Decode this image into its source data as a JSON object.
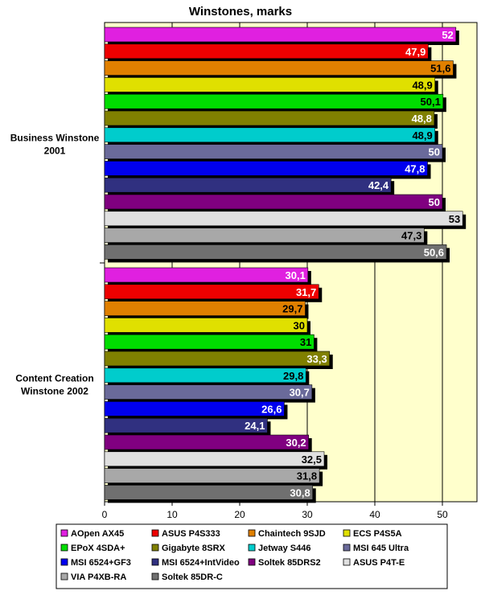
{
  "chart_data": {
    "type": "bar",
    "orientation": "horizontal",
    "title": "Winstones, marks",
    "xlabel": "",
    "ylabel": "",
    "xlim": [
      0,
      55
    ],
    "xticks": [
      0,
      10,
      20,
      30,
      40,
      50
    ],
    "grid": true,
    "legend_position": "bottom",
    "categories": [
      {
        "label": [
          "Business Winstone",
          "2001"
        ]
      },
      {
        "label": [
          "Content Creation",
          "Winstone 2002"
        ]
      }
    ],
    "series": [
      {
        "name": "AOpen AX45",
        "color": "#e020e0",
        "text_color": "#ffffff",
        "values": [
          52,
          30.1
        ],
        "labels": [
          "52",
          "30,1"
        ]
      },
      {
        "name": "ASUS P4S333",
        "color": "#ee0000",
        "text_color": "#ffffff",
        "values": [
          47.9,
          31.7
        ],
        "labels": [
          "47,9",
          "31,7"
        ]
      },
      {
        "name": "Chaintech 9SJD",
        "color": "#e08000",
        "text_color": "#000000",
        "values": [
          51.6,
          29.7
        ],
        "labels": [
          "51,6",
          "29,7"
        ]
      },
      {
        "name": "ECS P4S5A",
        "color": "#e0e000",
        "text_color": "#000000",
        "values": [
          48.9,
          30
        ],
        "labels": [
          "48,9",
          "30"
        ]
      },
      {
        "name": "EPoX 4SDA+",
        "color": "#00dd00",
        "text_color": "#000000",
        "values": [
          50.1,
          31
        ],
        "labels": [
          "50,1",
          "31"
        ]
      },
      {
        "name": "Gigabyte 8SRX",
        "color": "#808000",
        "text_color": "#ffffff",
        "values": [
          48.8,
          33.3
        ],
        "labels": [
          "48,8",
          "33,3"
        ]
      },
      {
        "name": "Jetway S446",
        "color": "#00cccc",
        "text_color": "#000000",
        "values": [
          48.9,
          29.8
        ],
        "labels": [
          "48,9",
          "29,8"
        ]
      },
      {
        "name": "MSI 645 Ultra",
        "color": "#6a6a9a",
        "text_color": "#ffffff",
        "values": [
          50,
          30.7
        ],
        "labels": [
          "50",
          "30,7"
        ]
      },
      {
        "name": "MSI 6524+GF3",
        "color": "#0000ee",
        "text_color": "#ffffff",
        "values": [
          47.8,
          26.6
        ],
        "labels": [
          "47,8",
          "26,6"
        ]
      },
      {
        "name": "MSI 6524+IntVideo",
        "color": "#303080",
        "text_color": "#ffffff",
        "values": [
          42.4,
          24.1
        ],
        "labels": [
          "42,4",
          "24,1"
        ]
      },
      {
        "name": "Soltek 85DRS2",
        "color": "#800080",
        "text_color": "#ffffff",
        "values": [
          50,
          30.2
        ],
        "labels": [
          "50",
          "30,2"
        ]
      },
      {
        "name": "ASUS P4T-E",
        "color": "#e0e0e0",
        "text_color": "#000000",
        "values": [
          53,
          32.5
        ],
        "labels": [
          "53",
          "32,5"
        ]
      },
      {
        "name": "VIA P4XB-RA",
        "color": "#a8a8a8",
        "text_color": "#000000",
        "values": [
          47.3,
          31.8
        ],
        "labels": [
          "47,3",
          "31,8"
        ]
      },
      {
        "name": "Soltek 85DR-C",
        "color": "#707070",
        "text_color": "#ffffff",
        "values": [
          50.6,
          30.8
        ],
        "labels": [
          "50,6",
          "30,8"
        ]
      }
    ],
    "colors": {
      "plot_background": "#ffffcc",
      "grid": "#000000",
      "page_background": "#ffffff"
    }
  }
}
